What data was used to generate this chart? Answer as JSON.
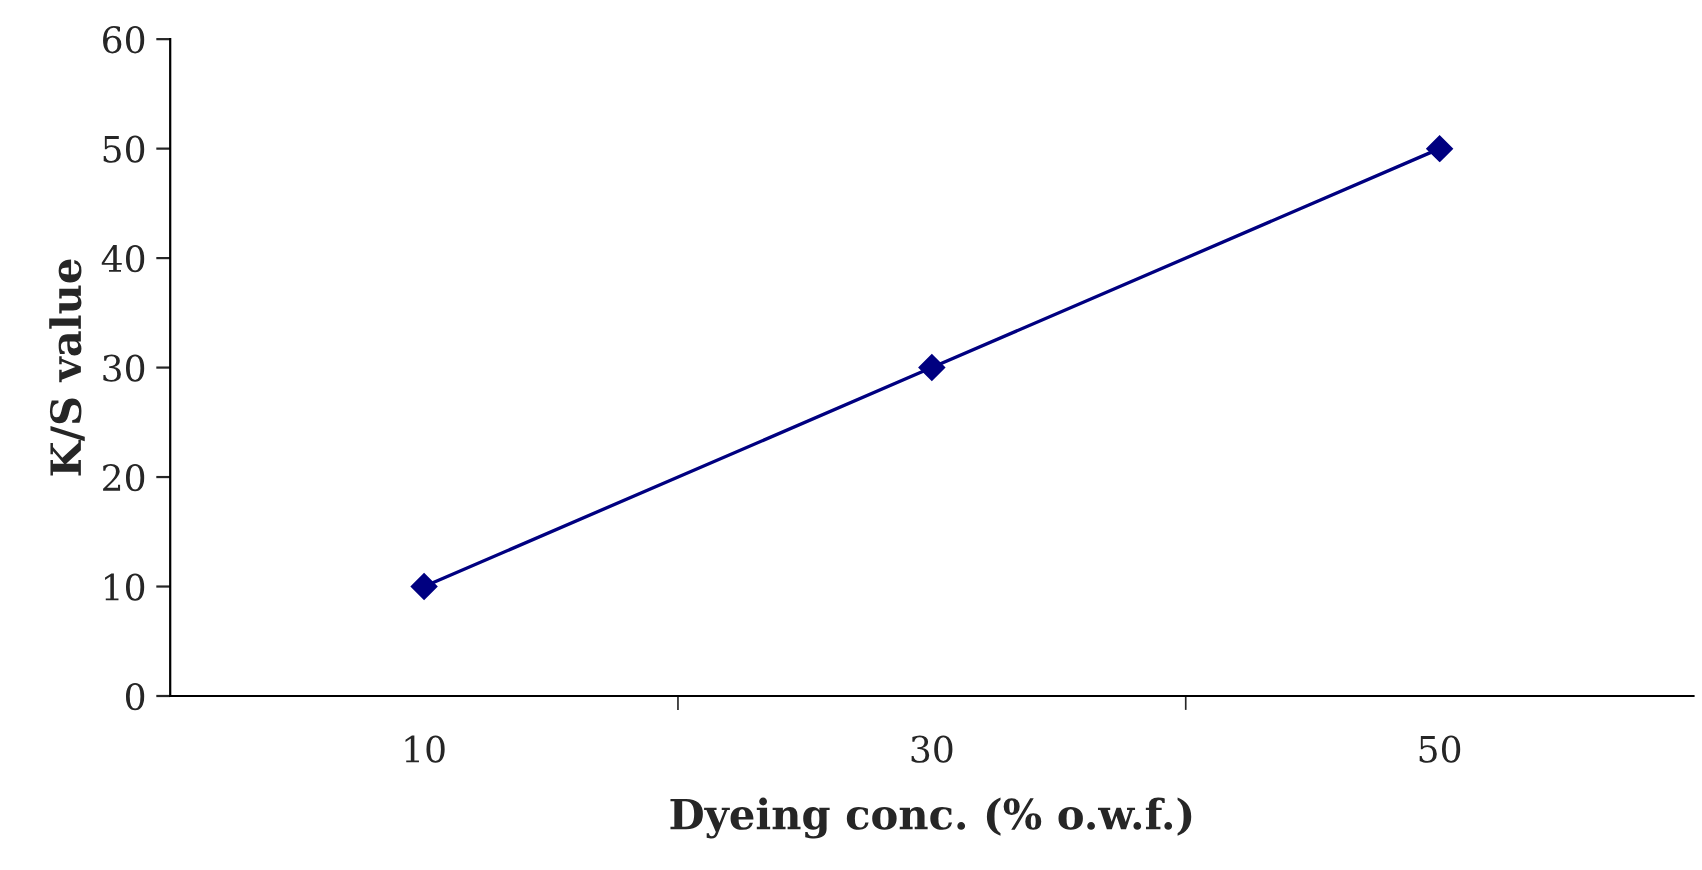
{
  "chart_data": {
    "type": "line",
    "xlabel": "Dyeing conc. (% o.w.f.)",
    "ylabel": "K/S value",
    "categories": [
      "10",
      "30",
      "50"
    ],
    "series": [
      {
        "color": "#000080",
        "values": [
          10,
          30,
          50
        ]
      }
    ],
    "ylim": [
      0,
      60
    ],
    "yticks": [
      0,
      10,
      20,
      30,
      40,
      50,
      60
    ],
    "grid": false,
    "legend": false,
    "marker": "diamond",
    "line_style": "solid"
  }
}
